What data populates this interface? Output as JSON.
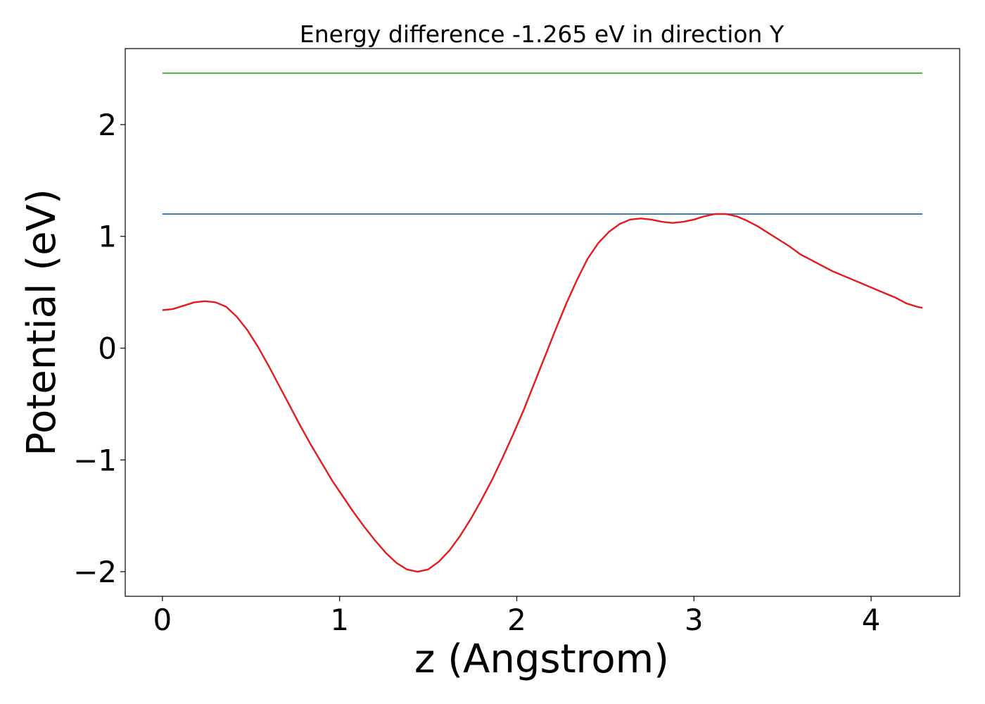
{
  "chart_data": {
    "type": "line",
    "title": "Energy difference -1.265 eV in direction Y",
    "xlabel": "z (Angstrom)",
    "ylabel": "Potential (eV)",
    "xlim": [
      -0.21,
      4.5
    ],
    "ylim": [
      -2.22,
      2.68
    ],
    "xticks": [
      0,
      1,
      2,
      3,
      4
    ],
    "xtick_labels": [
      "0",
      "1",
      "2",
      "3",
      "4"
    ],
    "yticks": [
      -2,
      -1,
      0,
      1,
      2
    ],
    "ytick_labels": [
      "−2",
      "−1",
      "0",
      "1",
      "2"
    ],
    "grid": false,
    "colors": {
      "green": "#4daf4a",
      "blue": "#377eb8",
      "red": "#e41a1c"
    },
    "series": [
      {
        "color": "#4daf4a",
        "x": [
          0,
          4.29
        ],
        "y": [
          2.46,
          2.46
        ]
      },
      {
        "color": "#377eb8",
        "x": [
          0,
          4.29
        ],
        "y": [
          1.2,
          1.2
        ]
      },
      {
        "color": "#e41a1c",
        "x": [
          0.0,
          0.06,
          0.12,
          0.18,
          0.24,
          0.3,
          0.36,
          0.42,
          0.48,
          0.54,
          0.6,
          0.66,
          0.72,
          0.78,
          0.84,
          0.9,
          0.96,
          1.02,
          1.08,
          1.14,
          1.2,
          1.26,
          1.32,
          1.38,
          1.44,
          1.5,
          1.56,
          1.62,
          1.68,
          1.74,
          1.8,
          1.86,
          1.92,
          1.98,
          2.04,
          2.1,
          2.16,
          2.22,
          2.28,
          2.34,
          2.4,
          2.46,
          2.52,
          2.58,
          2.64,
          2.7,
          2.76,
          2.82,
          2.88,
          2.94,
          3.0,
          3.06,
          3.12,
          3.18,
          3.24,
          3.3,
          3.36,
          3.42,
          3.48,
          3.54,
          3.6,
          3.66,
          3.72,
          3.78,
          3.84,
          3.9,
          3.96,
          4.02,
          4.08,
          4.14,
          4.2,
          4.26,
          4.29
        ],
        "y": [
          0.34,
          0.35,
          0.38,
          0.41,
          0.42,
          0.41,
          0.37,
          0.28,
          0.16,
          0.01,
          -0.16,
          -0.34,
          -0.52,
          -0.7,
          -0.87,
          -1.03,
          -1.19,
          -1.33,
          -1.47,
          -1.6,
          -1.72,
          -1.83,
          -1.92,
          -1.98,
          -2.0,
          -1.98,
          -1.91,
          -1.81,
          -1.68,
          -1.53,
          -1.36,
          -1.18,
          -0.98,
          -0.77,
          -0.55,
          -0.31,
          -0.07,
          0.17,
          0.4,
          0.61,
          0.8,
          0.94,
          1.04,
          1.11,
          1.15,
          1.16,
          1.15,
          1.13,
          1.12,
          1.13,
          1.15,
          1.18,
          1.2,
          1.2,
          1.18,
          1.14,
          1.09,
          1.03,
          0.97,
          0.91,
          0.84,
          0.79,
          0.74,
          0.69,
          0.65,
          0.61,
          0.57,
          0.53,
          0.49,
          0.45,
          0.4,
          0.37,
          0.36
        ]
      }
    ]
  }
}
